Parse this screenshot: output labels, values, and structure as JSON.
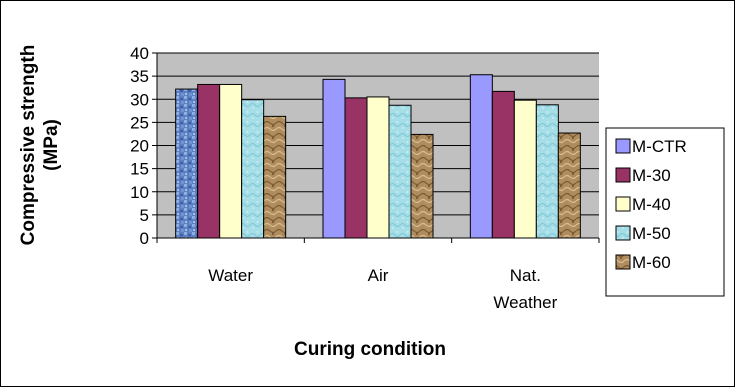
{
  "chart_data": {
    "type": "bar",
    "categories": [
      [
        "Water"
      ],
      [
        "Air"
      ],
      [
        "Nat.",
        "Weather"
      ]
    ],
    "series": [
      {
        "name": "M-CTR",
        "values": [
          32.2,
          34.3,
          35.3
        ],
        "color": "#9999FF",
        "pattern": "blue-mosaic"
      },
      {
        "name": "M-30",
        "values": [
          33.2,
          30.3,
          31.7
        ],
        "color": "#993366",
        "pattern": "solid"
      },
      {
        "name": "M-40",
        "values": [
          33.2,
          30.5,
          29.8
        ],
        "color": "#FFFFCC",
        "pattern": "solid"
      },
      {
        "name": "M-50",
        "values": [
          29.9,
          28.7,
          28.8
        ],
        "color": "#A6DEE8",
        "pattern": "water-droplets"
      },
      {
        "name": "M-60",
        "values": [
          26.3,
          22.4,
          22.7
        ],
        "color": "#B08D5E",
        "pattern": "sand"
      }
    ],
    "first_category_bar_pattern": "blue-mosaic",
    "xlabel": "Curing condition",
    "ylabel": [
      "Compressive strength",
      "(MPa)"
    ],
    "ylim": [
      0,
      40
    ],
    "yticks": [
      0,
      5,
      10,
      15,
      20,
      25,
      30,
      35,
      40
    ],
    "plot_background": "#C0C0C0",
    "grid": true,
    "legend_position": "right"
  }
}
